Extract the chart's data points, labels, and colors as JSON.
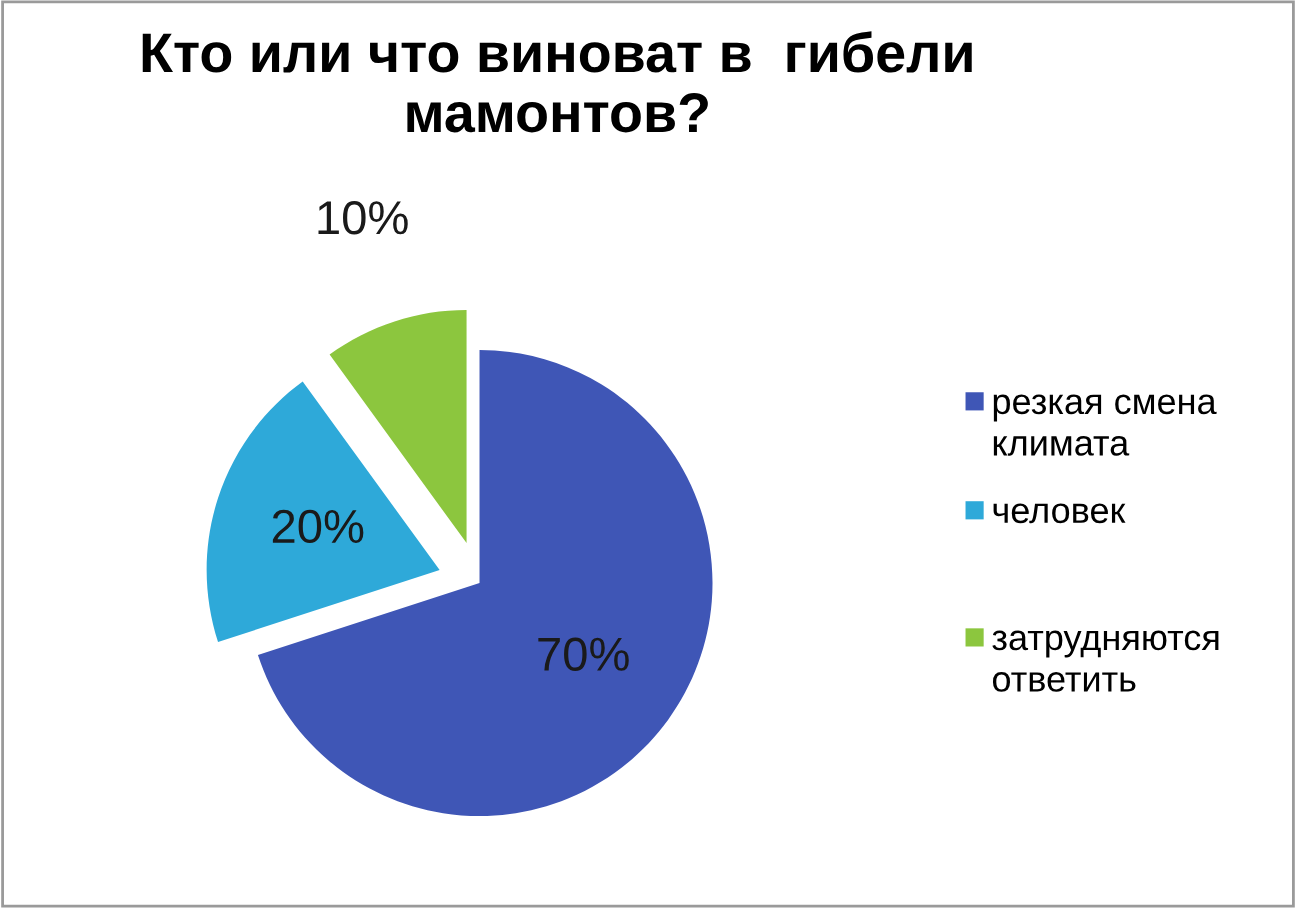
{
  "chart_data": {
    "type": "pie",
    "title": "Кто или что виноват в  гибели мамонтов?",
    "categories": [
      "резкая смена климата",
      "человек",
      "затрудняются ответить"
    ],
    "values": [
      70,
      20,
      10
    ],
    "value_labels": [
      "70%",
      "20%",
      "10%"
    ],
    "colors": [
      "#3f56b6",
      "#2ea9d9",
      "#8cc63e"
    ],
    "legend": "right"
  }
}
